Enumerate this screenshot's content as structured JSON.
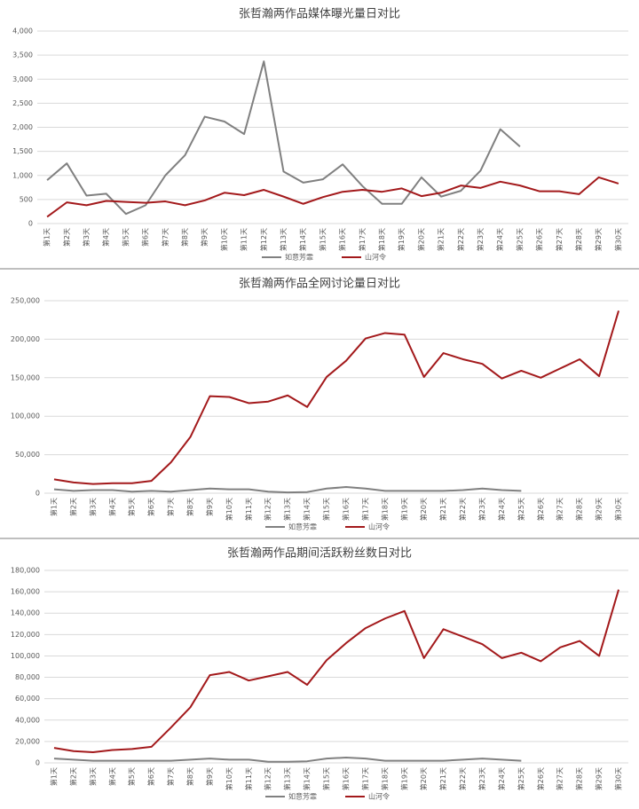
{
  "chart_data": [
    {
      "type": "line",
      "title": "张哲瀚两作品媒体曝光量日对比",
      "categories": [
        "第1天",
        "第2天",
        "第3天",
        "第4天",
        "第5天",
        "第6天",
        "第7天",
        "第8天",
        "第9天",
        "第10天",
        "第11天",
        "第12天",
        "第13天",
        "第14天",
        "第15天",
        "第16天",
        "第17天",
        "第18天",
        "第19天",
        "第20天",
        "第21天",
        "第22天",
        "第23天",
        "第24天",
        "第25天",
        "第26天",
        "第27天",
        "第28天",
        "第29天",
        "第30天"
      ],
      "series": [
        {
          "name": "如意芳霏",
          "color": "#808080",
          "values": [
            900,
            1250,
            580,
            620,
            200,
            380,
            1000,
            1420,
            2220,
            2120,
            1860,
            3370,
            1080,
            850,
            920,
            1230,
            780,
            410,
            410,
            960,
            560,
            680,
            1100,
            1960,
            1600,
            null,
            null,
            null,
            null,
            null
          ]
        },
        {
          "name": "山河令",
          "color": "#a3191b",
          "values": [
            140,
            440,
            380,
            470,
            450,
            430,
            460,
            380,
            480,
            640,
            590,
            700,
            560,
            410,
            550,
            660,
            700,
            660,
            730,
            570,
            640,
            790,
            740,
            870,
            790,
            670,
            670,
            610,
            960,
            830
          ]
        }
      ],
      "ylim": [
        0,
        4000
      ],
      "yticks": [
        0,
        500,
        {
          "value": 1000,
          "label": "1,000"
        },
        {
          "value": 1500,
          "label": "1,500"
        },
        {
          "value": 2000,
          "label": "2,000"
        },
        {
          "value": 2500,
          "label": "2,500"
        },
        {
          "value": 3000,
          "label": "3,000"
        },
        {
          "value": 3500,
          "label": "3,500"
        },
        {
          "value": 4000,
          "label": "4,000"
        }
      ],
      "grid": true,
      "legend": "bottom"
    },
    {
      "type": "line",
      "title": "张哲瀚两作品全网讨论量日对比",
      "categories": [
        "第1天",
        "第2天",
        "第3天",
        "第4天",
        "第5天",
        "第6天",
        "第7天",
        "第8天",
        "第9天",
        "第10天",
        "第11天",
        "第12天",
        "第13天",
        "第14天",
        "第15天",
        "第16天",
        "第17天",
        "第18天",
        "第19天",
        "第20天",
        "第21天",
        "第22天",
        "第23天",
        "第24天",
        "第25天",
        "第26天",
        "第27天",
        "第28天",
        "第29天",
        "第30天"
      ],
      "series": [
        {
          "name": "如意芳霏",
          "color": "#808080",
          "values": [
            5000,
            3000,
            4000,
            4000,
            2000,
            3000,
            2000,
            4000,
            6000,
            5000,
            5000,
            2000,
            1000,
            1500,
            6000,
            8000,
            6000,
            3000,
            3000,
            3000,
            3000,
            4000,
            6000,
            4000,
            3000,
            null,
            null,
            null,
            null,
            null
          ]
        },
        {
          "name": "山河令",
          "color": "#a3191b",
          "values": [
            18000,
            14000,
            12000,
            13000,
            13000,
            16000,
            40000,
            73000,
            126000,
            125000,
            117000,
            119000,
            127000,
            112000,
            151000,
            172000,
            201000,
            208000,
            206000,
            151000,
            182000,
            174000,
            168000,
            149000,
            159000,
            150000,
            162000,
            174000,
            152000,
            237000
          ]
        }
      ],
      "ylim": [
        0,
        250000
      ],
      "yticks": [
        0,
        {
          "value": 50000,
          "label": "50,000"
        },
        {
          "value": 100000,
          "label": "100,000"
        },
        {
          "value": 150000,
          "label": "150,000"
        },
        {
          "value": 200000,
          "label": "200,000"
        },
        {
          "value": 250000,
          "label": "250,000"
        }
      ],
      "grid": true,
      "legend": "bottom"
    },
    {
      "type": "line",
      "title": "张哲瀚两作品期间活跃粉丝数日对比",
      "categories": [
        "第1天",
        "第2天",
        "第3天",
        "第4天",
        "第5天",
        "第6天",
        "第7天",
        "第8天",
        "第9天",
        "第10天",
        "第11天",
        "第12天",
        "第13天",
        "第14天",
        "第15天",
        "第16天",
        "第17天",
        "第18天",
        "第19天",
        "第20天",
        "第21天",
        "第22天",
        "第23天",
        "第24天",
        "第25天",
        "第26天",
        "第27天",
        "第28天",
        "第29天",
        "第30天"
      ],
      "series": [
        {
          "name": "如意芳霏",
          "color": "#808080",
          "values": [
            4000,
            3000,
            2000,
            2000,
            2000,
            2000,
            2000,
            3000,
            4000,
            3000,
            3000,
            1000,
            1000,
            1500,
            4000,
            5000,
            4000,
            2000,
            2000,
            2000,
            2000,
            3000,
            4000,
            3000,
            2000,
            null,
            null,
            null,
            null,
            null
          ]
        },
        {
          "name": "山河令",
          "color": "#a3191b",
          "values": [
            14000,
            11000,
            10000,
            12000,
            13000,
            15000,
            33000,
            52000,
            82000,
            85000,
            77000,
            81000,
            85000,
            73000,
            96000,
            112000,
            126000,
            135000,
            142000,
            98000,
            125000,
            118000,
            111000,
            98000,
            103000,
            95000,
            108000,
            114000,
            100000,
            162000
          ]
        }
      ],
      "ylim": [
        0,
        180000
      ],
      "yticks": [
        0,
        {
          "value": 20000,
          "label": "20,000"
        },
        {
          "value": 40000,
          "label": "40,000"
        },
        {
          "value": 60000,
          "label": "60,000"
        },
        {
          "value": 80000,
          "label": "80,000"
        },
        {
          "value": 100000,
          "label": "100,000"
        },
        {
          "value": 120000,
          "label": "120,000"
        },
        {
          "value": 140000,
          "label": "140,000"
        },
        {
          "value": 160000,
          "label": "160,000"
        },
        {
          "value": 180000,
          "label": "180,000"
        }
      ],
      "grid": true,
      "legend": "bottom"
    }
  ]
}
